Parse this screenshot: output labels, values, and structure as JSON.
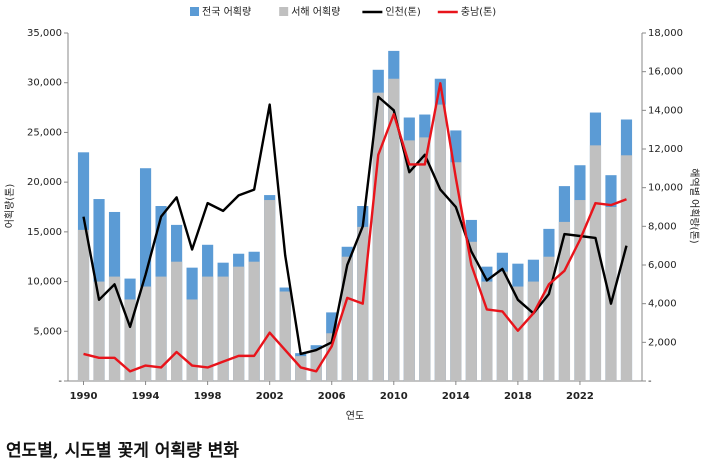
{
  "chart_data": {
    "type": "bar-line",
    "caption": "연도별, 시도별 꽃게 어획량 변화",
    "x_label": "연도",
    "y_label": "어획량(톤)",
    "y2_label": "해역별 어획량(톤)",
    "x": [
      1990,
      1991,
      1992,
      1993,
      1994,
      1995,
      1996,
      1997,
      1998,
      1999,
      2000,
      2001,
      2002,
      2003,
      2004,
      2005,
      2006,
      2007,
      2008,
      2009,
      2010,
      2011,
      2012,
      2013,
      2014,
      2015,
      2016,
      2017,
      2018,
      2019,
      2020,
      2021,
      2022,
      2023,
      2024,
      2025
    ],
    "xlim": [
      1989,
      2026
    ],
    "xticks": [
      1990,
      1994,
      1998,
      2002,
      2006,
      2010,
      2014,
      2018,
      2022
    ],
    "ylim": [
      0,
      35000
    ],
    "yticks": [
      {
        "value": 0,
        "label": "-"
      },
      {
        "value": 5000,
        "label": "5,000"
      },
      {
        "value": 10000,
        "label": "10,000"
      },
      {
        "value": 15000,
        "label": "15,000"
      },
      {
        "value": 20000,
        "label": "20,000"
      },
      {
        "value": 25000,
        "label": "25,000"
      },
      {
        "value": 30000,
        "label": "30,000"
      },
      {
        "value": 35000,
        "label": "35,000"
      }
    ],
    "y2lim": [
      0,
      18000
    ],
    "y2ticks": [
      {
        "value": 0,
        "label": "-"
      },
      {
        "value": 2000,
        "label": "2,000"
      },
      {
        "value": 4000,
        "label": "4,000"
      },
      {
        "value": 6000,
        "label": "6,000"
      },
      {
        "value": 8000,
        "label": "8,000"
      },
      {
        "value": 10000,
        "label": "10,000"
      },
      {
        "value": 12000,
        "label": "12,000"
      },
      {
        "value": 14000,
        "label": "14,000"
      },
      {
        "value": 16000,
        "label": "16,000"
      },
      {
        "value": 18000,
        "label": "18,000"
      }
    ],
    "series": [
      {
        "name": "전국 어획량",
        "type": "bar",
        "color": "#5b9bd5",
        "values": [
          23000,
          18300,
          17000,
          10300,
          21400,
          17600,
          15700,
          11400,
          13700,
          11900,
          12800,
          13000,
          18700,
          9400,
          2800,
          3600,
          6900,
          13500,
          17600,
          31300,
          33200,
          26500,
          26800,
          30400,
          25200,
          16200,
          11500,
          12900,
          11800,
          12200,
          15300,
          19600,
          21700,
          27000,
          20700,
          26300
        ]
      },
      {
        "name": "서해 어획량",
        "type": "bar",
        "color": "#c0c0c0",
        "values": [
          15200,
          10000,
          10500,
          8200,
          9500,
          10500,
          12000,
          8200,
          10500,
          10500,
          11500,
          12000,
          18200,
          9000,
          2500,
          3200,
          4800,
          12500,
          15500,
          29000,
          30400,
          24200,
          24500,
          27800,
          22000,
          14000,
          10000,
          11000,
          9500,
          10000,
          12500,
          16000,
          18200,
          23700,
          17500,
          22700
        ]
      },
      {
        "name": "인천(톤)",
        "type": "line",
        "axis": "y2",
        "color": "#000000",
        "values": [
          8500,
          4200,
          5000,
          2800,
          5500,
          8500,
          9500,
          6800,
          9200,
          8800,
          9600,
          9900,
          14300,
          6500,
          1400,
          1600,
          2000,
          6000,
          8000,
          14700,
          14000,
          10800,
          11700,
          9900,
          9000,
          6700,
          5200,
          5800,
          4200,
          3500,
          4500,
          7600,
          7500,
          7400,
          4000,
          7000
        ]
      },
      {
        "name": "충남(톤)",
        "type": "line",
        "axis": "y2",
        "color": "#e8141b",
        "values": [
          1400,
          1200,
          1200,
          500,
          800,
          700,
          1500,
          800,
          700,
          1000,
          1300,
          1300,
          2500,
          1600,
          700,
          500,
          1800,
          4300,
          4000,
          11700,
          13800,
          11200,
          11200,
          15400,
          10500,
          6000,
          3700,
          3600,
          2600,
          3500,
          5000,
          5700,
          7300,
          9200,
          9100,
          9400
        ]
      }
    ]
  }
}
